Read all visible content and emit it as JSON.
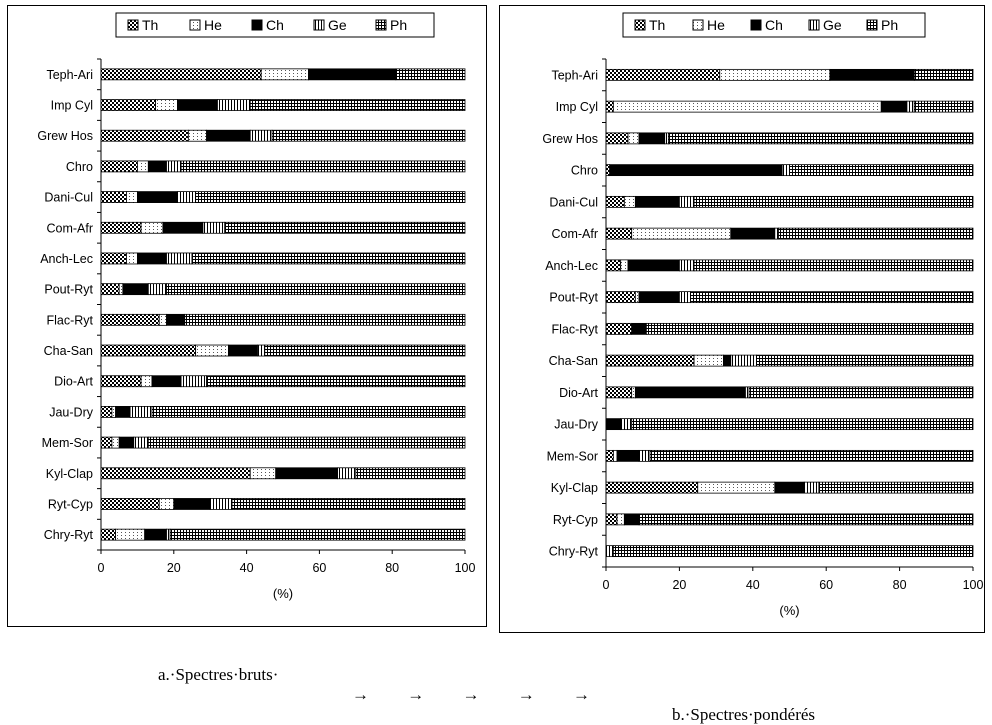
{
  "legend": [
    "Th",
    "He",
    "Ch",
    "Ge",
    "Ph"
  ],
  "chart_data": [
    {
      "type": "bar",
      "orientation": "horizontal",
      "stacked": true,
      "title": "",
      "xlabel": "(%)",
      "ylabel": "",
      "xlim": [
        0,
        100
      ],
      "xticks": [
        0,
        20,
        40,
        60,
        80,
        100
      ],
      "legend_position": "top",
      "categories": [
        "Teph-Ari",
        "Imp Cyl",
        "Grew Hos",
        "Chro",
        "Dani-Cul",
        "Com-Afr",
        "Anch-Lec",
        "Pout-Ryt",
        "Flac-Ryt",
        "Cha-San",
        "Dio-Art",
        "Jau-Dry",
        "Mem-Sor",
        "Kyl-Clap",
        "Ryt-Cyp",
        "Chry-Ryt"
      ],
      "series": [
        {
          "name": "Th",
          "values": [
            44,
            15,
            24,
            10,
            7,
            11,
            7,
            5,
            16,
            26,
            11,
            3,
            3,
            41,
            16,
            4
          ]
        },
        {
          "name": "He",
          "values": [
            13,
            6,
            5,
            3,
            3,
            6,
            3,
            1,
            2,
            9,
            3,
            1,
            2,
            7,
            4,
            8
          ]
        },
        {
          "name": "Ch",
          "values": [
            24,
            11,
            12,
            5,
            11,
            11,
            8,
            7,
            5,
            8,
            8,
            4,
            4,
            17,
            10,
            6
          ]
        },
        {
          "name": "Ge",
          "values": [
            0,
            9,
            6,
            4,
            5,
            6,
            7,
            5,
            0,
            2,
            7,
            6,
            4,
            5,
            6,
            1
          ]
        },
        {
          "name": "Ph",
          "values": [
            19,
            59,
            53,
            78,
            74,
            66,
            75,
            82,
            77,
            55,
            71,
            86,
            87,
            30,
            64,
            81
          ]
        }
      ]
    },
    {
      "type": "bar",
      "orientation": "horizontal",
      "stacked": true,
      "title": "",
      "xlabel": "(%)",
      "ylabel": "",
      "xlim": [
        0,
        100
      ],
      "xticks": [
        0,
        20,
        40,
        60,
        80,
        100
      ],
      "legend_position": "top",
      "categories": [
        "Teph-Ari",
        "Imp Cyl",
        "Grew Hos",
        "Chro",
        "Dani-Cul",
        "Com-Afr",
        "Anch-Lec",
        "Pout-Ryt",
        "Flac-Ryt",
        "Cha-San",
        "Dio-Art",
        "Jau-Dry",
        "Mem-Sor",
        "Kyl-Clap",
        "Ryt-Cyp",
        "Chry-Ryt"
      ],
      "series": [
        {
          "name": "Th",
          "values": [
            31,
            2,
            6,
            1,
            5,
            7,
            4,
            8,
            7,
            24,
            7,
            0,
            2,
            25,
            3,
            0
          ]
        },
        {
          "name": "He",
          "values": [
            30,
            73,
            3,
            0,
            3,
            27,
            2,
            1,
            0,
            8,
            1,
            0,
            1,
            21,
            2,
            0
          ]
        },
        {
          "name": "Ch",
          "values": [
            23,
            7,
            7,
            47,
            12,
            12,
            14,
            11,
            4,
            2,
            30,
            4,
            6,
            8,
            4,
            0
          ]
        },
        {
          "name": "Ge",
          "values": [
            0,
            2,
            1,
            2,
            4,
            1,
            4,
            3,
            0,
            7,
            1,
            3,
            3,
            4,
            0,
            2
          ]
        },
        {
          "name": "Ph",
          "values": [
            16,
            16,
            83,
            50,
            76,
            53,
            76,
            77,
            89,
            59,
            61,
            93,
            88,
            42,
            91,
            98
          ]
        }
      ]
    }
  ],
  "captions": {
    "a": "a.·Spectres·bruts·",
    "arrows": "→         →         →         →         →",
    "b": "b.·Spectres·pondérés"
  }
}
